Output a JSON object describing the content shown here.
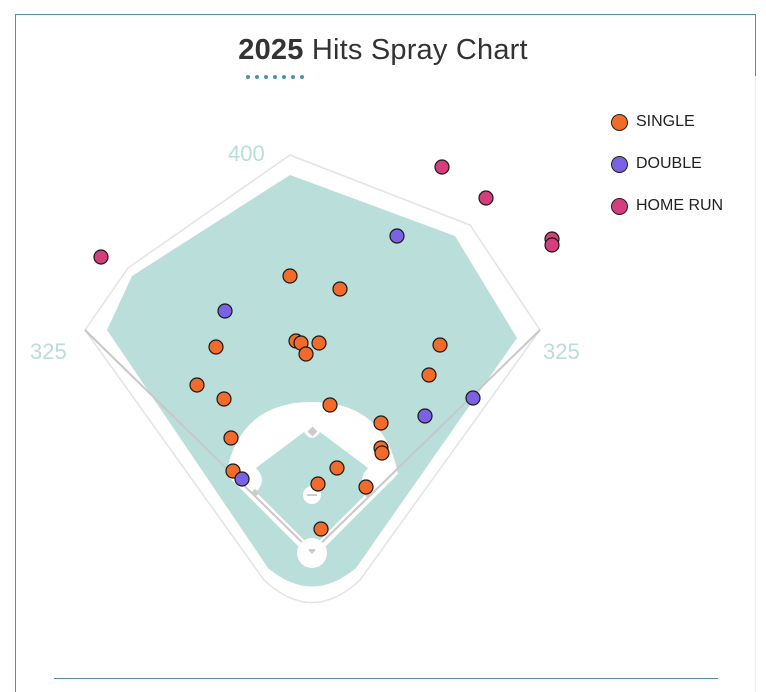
{
  "chart_data": {
    "type": "scatter",
    "title_bold": "2025",
    "title_rest": "Hits Spray Chart",
    "units": "feet from home plate (x: toward right field positive, y: toward center field)",
    "distance_labels": {
      "left_field": "325",
      "center_field": "400",
      "right_field": "325"
    },
    "legend": [
      {
        "name": "SINGLE",
        "color": "#f26b2a"
      },
      {
        "name": "DOUBLE",
        "color": "#7b62e3"
      },
      {
        "name": "HOME RUN",
        "color": "#d63d7c"
      }
    ],
    "legend_placement": "top-right",
    "series": [
      {
        "name": "SINGLE",
        "color": "#f26b2a",
        "points": [
          [
            -22,
            276
          ],
          [
            28,
            263
          ],
          [
            -96,
            205
          ],
          [
            -16,
            211
          ],
          [
            -11,
            209
          ],
          [
            7,
            209
          ],
          [
            -6,
            198
          ],
          [
            128,
            207
          ],
          [
            -115,
            167
          ],
          [
            -88,
            153
          ],
          [
            117,
            177
          ],
          [
            18,
            147
          ],
          [
            69,
            129
          ],
          [
            -81,
            114
          ],
          [
            69,
            104
          ],
          [
            70,
            99
          ],
          [
            25,
            84
          ],
          [
            -79,
            81
          ],
          [
            6,
            68
          ],
          [
            54,
            65
          ],
          [
            9,
            23
          ]
        ]
      },
      {
        "name": "DOUBLE",
        "color": "#7b62e3",
        "points": [
          [
            85,
            316
          ],
          [
            -87,
            241
          ],
          [
            113,
            136
          ],
          [
            161,
            154
          ],
          [
            -70,
            73
          ]
        ]
      },
      {
        "name": "HOME RUN",
        "color": "#d63d7c",
        "points": [
          [
            130,
            385
          ],
          [
            174,
            354
          ],
          [
            240,
            313
          ],
          [
            240,
            307
          ],
          [
            -211,
            295
          ]
        ]
      }
    ]
  }
}
